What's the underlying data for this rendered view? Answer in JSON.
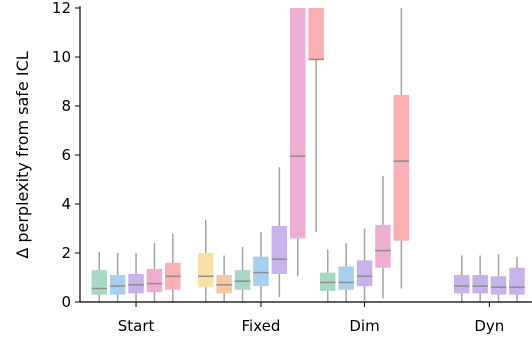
{
  "chart_data": {
    "type": "box",
    "title": "",
    "ylabel": "Δ perplexity from safe ICL",
    "xlabel": "",
    "ylim": [
      0,
      12
    ],
    "yticks": [
      0,
      2,
      4,
      6,
      8,
      10,
      12
    ],
    "grid": false,
    "legend": "none",
    "groups": [
      {
        "label": "Start",
        "boxes": [
          {
            "color": "#a8d8c4",
            "whisker_low": 0.0,
            "q1": 0.3,
            "median": 0.55,
            "q3": 1.3,
            "whisker_high": 2.05
          },
          {
            "color": "#a9cfee",
            "whisker_low": 0.0,
            "q1": 0.3,
            "median": 0.65,
            "q3": 1.1,
            "whisker_high": 2.0
          },
          {
            "color": "#c8b2ea",
            "whisker_low": 0.0,
            "q1": 0.35,
            "median": 0.7,
            "q3": 1.15,
            "whisker_high": 2.0
          },
          {
            "color": "#eeaed4",
            "whisker_low": 0.0,
            "q1": 0.4,
            "median": 0.75,
            "q3": 1.35,
            "whisker_high": 2.4
          },
          {
            "color": "#f8b0b5",
            "whisker_low": 0.0,
            "q1": 0.5,
            "median": 1.05,
            "q3": 1.6,
            "whisker_high": 2.8
          }
        ]
      },
      {
        "label": "Fixed",
        "boxes": [
          {
            "color": "#f8e1a8",
            "whisker_low": 0.0,
            "q1": 0.6,
            "median": 1.05,
            "q3": 2.0,
            "whisker_high": 3.35
          },
          {
            "color": "#f5c7a5",
            "whisker_low": 0.0,
            "q1": 0.35,
            "median": 0.7,
            "q3": 1.1,
            "whisker_high": 1.9
          },
          {
            "color": "#a8d8c4",
            "whisker_low": 0.0,
            "q1": 0.5,
            "median": 0.85,
            "q3": 1.3,
            "whisker_high": 2.25
          },
          {
            "color": "#a9cfee",
            "whisker_low": 0.05,
            "q1": 0.65,
            "median": 1.2,
            "q3": 1.85,
            "whisker_high": 2.85
          },
          {
            "color": "#c8b2ea",
            "whisker_low": 0.2,
            "q1": 1.15,
            "median": 1.75,
            "q3": 3.1,
            "whisker_high": 5.5
          },
          {
            "color": "#eeaed4",
            "whisker_low": 1.05,
            "q1": 2.6,
            "median": 5.95,
            "q3": 12.0,
            "whisker_high": 12.0
          },
          {
            "color": "#f8b0b5",
            "whisker_low": 2.85,
            "q1": 9.9,
            "median": 9.9,
            "q3": 12.0,
            "whisker_high": 12.0
          }
        ]
      },
      {
        "label": "Dim",
        "boxes": [
          {
            "color": "#a8d8c4",
            "whisker_low": 0.0,
            "q1": 0.45,
            "median": 0.8,
            "q3": 1.2,
            "whisker_high": 2.15
          },
          {
            "color": "#a9cfee",
            "whisker_low": 0.0,
            "q1": 0.5,
            "median": 0.8,
            "q3": 1.45,
            "whisker_high": 2.4
          },
          {
            "color": "#c8b2ea",
            "whisker_low": 0.05,
            "q1": 0.65,
            "median": 1.05,
            "q3": 1.7,
            "whisker_high": 3.0
          },
          {
            "color": "#eeaed4",
            "whisker_low": 0.15,
            "q1": 1.4,
            "median": 2.1,
            "q3": 3.15,
            "whisker_high": 5.15
          },
          {
            "color": "#f8b0b5",
            "whisker_low": 0.55,
            "q1": 2.5,
            "median": 5.75,
            "q3": 8.45,
            "whisker_high": 12.0
          }
        ]
      },
      {
        "label": "Dyn",
        "boxes": [
          {
            "color": "#c8b2ea",
            "whisker_low": 0.0,
            "q1": 0.35,
            "median": 0.65,
            "q3": 1.1,
            "whisker_high": 1.9
          },
          {
            "color": "#c8b2ea",
            "whisker_low": 0.0,
            "q1": 0.35,
            "median": 0.65,
            "q3": 1.1,
            "whisker_high": 1.9
          },
          {
            "color": "#c8b2ea",
            "whisker_low": 0.0,
            "q1": 0.3,
            "median": 0.6,
            "q3": 1.05,
            "whisker_high": 1.95
          },
          {
            "color": "#c8b2ea",
            "whisker_low": 0.0,
            "q1": 0.3,
            "median": 0.6,
            "q3": 1.4,
            "whisker_high": 1.85
          }
        ]
      }
    ]
  }
}
